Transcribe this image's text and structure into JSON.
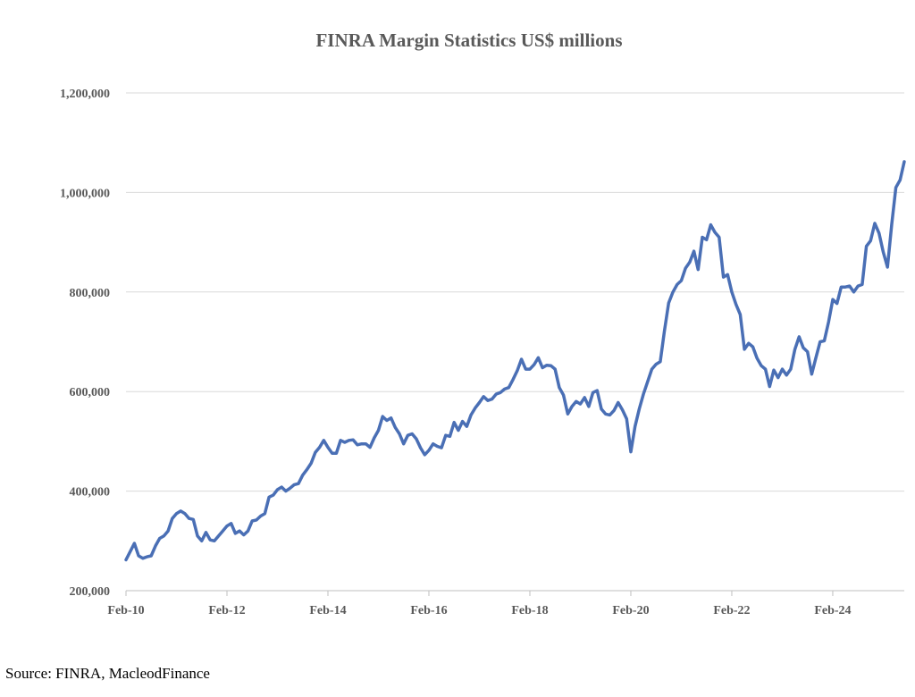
{
  "source_text": "Source: FINRA, MacleodFinance",
  "colors": {
    "series": "#4a6fb5",
    "grid": "#d9d9d9",
    "text": "#595959"
  },
  "chart_data": {
    "type": "line",
    "title": "FINRA Margin Statistics US$ millions",
    "xlabel": "",
    "ylabel": "",
    "ylim": [
      200000,
      1200000
    ],
    "xlim": [
      "2010-02",
      "2025-07"
    ],
    "y_ticks": [
      {
        "value": 200000,
        "label": "200,000"
      },
      {
        "value": 400000,
        "label": "400,000"
      },
      {
        "value": 600000,
        "label": "600,000"
      },
      {
        "value": 800000,
        "label": "800,000"
      },
      {
        "value": 1000000,
        "label": "1,000,000"
      },
      {
        "value": 1200000,
        "label": "1,200,000"
      }
    ],
    "x_ticks": [
      {
        "value": "2010-02",
        "label": "Feb-10"
      },
      {
        "value": "2012-02",
        "label": "Feb-12"
      },
      {
        "value": "2014-02",
        "label": "Feb-14"
      },
      {
        "value": "2016-02",
        "label": "Feb-16"
      },
      {
        "value": "2018-02",
        "label": "Feb-18"
      },
      {
        "value": "2020-02",
        "label": "Feb-20"
      },
      {
        "value": "2022-02",
        "label": "Feb-22"
      },
      {
        "value": "2024-02",
        "label": "Feb-24"
      }
    ],
    "grid": true,
    "legend": "none",
    "series": [
      {
        "x": [
          "2010-02",
          "2010-04",
          "2010-05",
          "2010-06",
          "2010-07",
          "2010-08",
          "2010-09",
          "2010-10",
          "2010-11",
          "2010-12",
          "2011-01",
          "2011-02",
          "2011-03",
          "2011-04",
          "2011-05",
          "2011-06",
          "2011-07",
          "2011-08",
          "2011-09",
          "2011-10",
          "2011-11",
          "2011-12",
          "2012-01",
          "2012-02",
          "2012-03",
          "2012-04",
          "2012-05",
          "2012-06",
          "2012-07",
          "2012-08",
          "2012-09",
          "2012-10",
          "2012-11",
          "2012-12",
          "2013-01",
          "2013-02",
          "2013-03",
          "2013-04",
          "2013-05",
          "2013-06",
          "2013-07",
          "2013-08",
          "2013-09",
          "2013-10",
          "2013-11",
          "2013-12",
          "2014-01",
          "2014-02",
          "2014-03",
          "2014-04",
          "2014-05",
          "2014-06",
          "2014-07",
          "2014-08",
          "2014-09",
          "2014-10",
          "2014-11",
          "2014-12",
          "2015-01",
          "2015-02",
          "2015-03",
          "2015-04",
          "2015-05",
          "2015-06",
          "2015-07",
          "2015-08",
          "2015-09",
          "2015-10",
          "2015-11",
          "2015-12",
          "2016-01",
          "2016-02",
          "2016-03",
          "2016-04",
          "2016-05",
          "2016-06",
          "2016-07",
          "2016-08",
          "2016-09",
          "2016-10",
          "2016-11",
          "2016-12",
          "2017-01",
          "2017-02",
          "2017-03",
          "2017-04",
          "2017-05",
          "2017-06",
          "2017-07",
          "2017-08",
          "2017-09",
          "2017-10",
          "2017-11",
          "2017-12",
          "2018-01",
          "2018-02",
          "2018-03",
          "2018-04",
          "2018-05",
          "2018-06",
          "2018-07",
          "2018-08",
          "2018-09",
          "2018-10",
          "2018-11",
          "2018-12",
          "2019-01",
          "2019-02",
          "2019-03",
          "2019-04",
          "2019-05",
          "2019-06",
          "2019-07",
          "2019-08",
          "2019-09",
          "2019-10",
          "2019-11",
          "2019-12",
          "2020-01",
          "2020-02",
          "2020-03",
          "2020-04",
          "2020-05",
          "2020-06",
          "2020-07",
          "2020-08",
          "2020-09",
          "2020-10",
          "2020-11",
          "2020-12",
          "2021-01",
          "2021-02",
          "2021-03",
          "2021-04",
          "2021-05",
          "2021-06",
          "2021-07",
          "2021-08",
          "2021-09",
          "2021-10",
          "2021-11",
          "2021-12",
          "2022-01",
          "2022-02",
          "2022-03",
          "2022-04",
          "2022-05",
          "2022-06",
          "2022-07",
          "2022-08",
          "2022-09",
          "2022-10",
          "2022-11",
          "2022-12",
          "2023-01",
          "2023-02",
          "2023-03",
          "2023-04",
          "2023-05",
          "2023-06",
          "2023-07",
          "2023-08",
          "2023-09",
          "2023-10",
          "2023-11",
          "2023-12",
          "2024-01",
          "2024-02",
          "2024-03",
          "2024-04",
          "2024-05",
          "2024-06",
          "2024-07",
          "2024-08",
          "2024-09",
          "2024-10",
          "2024-11",
          "2024-12",
          "2025-01",
          "2025-02",
          "2025-03",
          "2025-04",
          "2025-05",
          "2025-06",
          "2025-07"
        ],
        "values": [
          262000,
          295000,
          270000,
          265000,
          268000,
          270000,
          290000,
          305000,
          310000,
          320000,
          345000,
          355000,
          360000,
          355000,
          345000,
          343000,
          310000,
          300000,
          317000,
          302000,
          300000,
          310000,
          320000,
          330000,
          335000,
          315000,
          320000,
          312000,
          320000,
          340000,
          342000,
          350000,
          355000,
          388000,
          392000,
          403000,
          408000,
          400000,
          406000,
          413000,
          415000,
          432000,
          443000,
          456000,
          478000,
          488000,
          502000,
          488000,
          476000,
          476000,
          502000,
          498000,
          502000,
          503000,
          493000,
          495000,
          495000,
          488000,
          507000,
          522000,
          550000,
          542000,
          547000,
          528000,
          515000,
          495000,
          512000,
          515000,
          505000,
          487000,
          473000,
          482000,
          495000,
          490000,
          487000,
          512000,
          510000,
          538000,
          522000,
          540000,
          530000,
          553000,
          567000,
          578000,
          590000,
          582000,
          585000,
          595000,
          598000,
          605000,
          608000,
          624000,
          642000,
          665000,
          645000,
          645000,
          654000,
          668000,
          648000,
          653000,
          652000,
          645000,
          608000,
          593000,
          555000,
          570000,
          580000,
          575000,
          588000,
          570000,
          598000,
          602000,
          565000,
          555000,
          553000,
          562000,
          578000,
          563000,
          545000,
          479000,
          530000,
          565000,
          595000,
          620000,
          645000,
          655000,
          660000,
          722000,
          778000,
          800000,
          815000,
          823000,
          848000,
          860000,
          882000,
          845000,
          910000,
          905000,
          935000,
          920000,
          910000,
          830000,
          835000,
          800000,
          775000,
          755000,
          685000,
          697000,
          690000,
          667000,
          652000,
          645000,
          610000,
          643000,
          628000,
          645000,
          633000,
          645000,
          685000,
          710000,
          688000,
          680000,
          635000,
          668000,
          700000,
          702000,
          740000,
          785000,
          777000,
          810000,
          810000,
          812000,
          800000,
          812000,
          815000,
          892000,
          903000,
          938000,
          918000,
          880000,
          850000,
          935000,
          1010000,
          1025000,
          1062000
        ]
      }
    ]
  }
}
